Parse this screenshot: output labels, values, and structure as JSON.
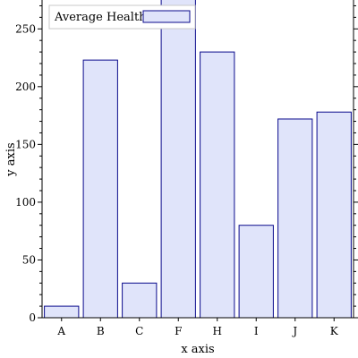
{
  "chart_data": {
    "type": "bar",
    "categories": [
      "A",
      "B",
      "C",
      "F",
      "H",
      "I",
      "J",
      "K"
    ],
    "series": [
      {
        "name": "Average Health",
        "values": [
          10,
          223,
          30,
          300,
          230,
          80,
          172,
          178
        ]
      }
    ],
    "xlabel": "x axis",
    "ylabel": "y axis",
    "ylim": [
      0,
      275
    ],
    "yticks": [
      0,
      50,
      100,
      150,
      200,
      250
    ],
    "grid": false,
    "legend": "top-left",
    "colors": {
      "bar_fill": "#e0e4fa",
      "bar_stroke": "#0a0a8c",
      "axis": "#000000"
    }
  }
}
